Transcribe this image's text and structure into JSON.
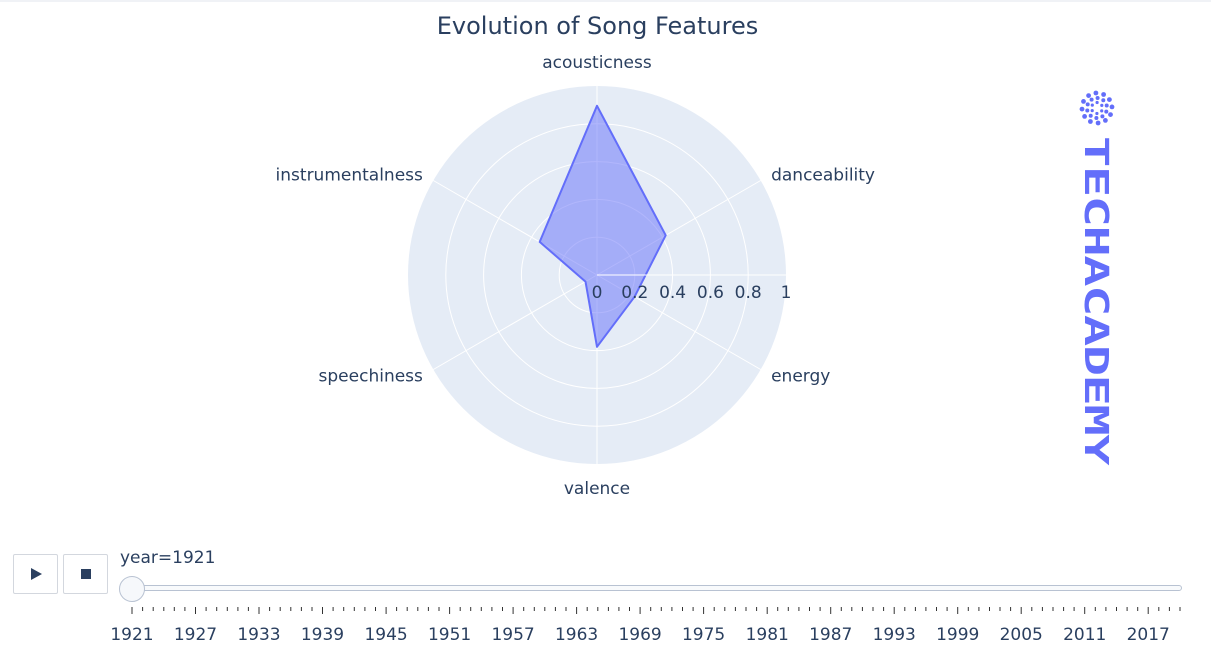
{
  "chart_data": {
    "type": "radar",
    "title": "Evolution of Song Features",
    "theta": [
      "acousticness",
      "danceability",
      "energy",
      "valence",
      "speechiness",
      "instrumentalness"
    ],
    "r": [
      0.895,
      0.42,
      0.23,
      0.38,
      0.07,
      0.35
    ],
    "radial_axis": {
      "range": [
        0,
        1
      ],
      "tick_labels": [
        "0",
        "0.2",
        "0.4",
        "0.6",
        "0.8",
        "1"
      ],
      "tick_values": [
        0,
        0.2,
        0.4,
        0.6,
        0.8,
        1
      ]
    },
    "fill_color": "#636efa",
    "background_color": "#e5ecf6",
    "grid": true
  },
  "logo": {
    "text": "TECHACADEMY",
    "color": "#636efa"
  },
  "animation": {
    "play_icon": "play-icon",
    "stop_icon": "stop-icon",
    "slider_prefix": "year=",
    "current_year": "1921",
    "year_labels": [
      "1921",
      "1927",
      "1933",
      "1939",
      "1945",
      "1951",
      "1957",
      "1963",
      "1969",
      "1975",
      "1981",
      "1987",
      "1993",
      "1999",
      "2005",
      "2011",
      "2017"
    ],
    "year_first": 1921,
    "year_last": 2020
  }
}
